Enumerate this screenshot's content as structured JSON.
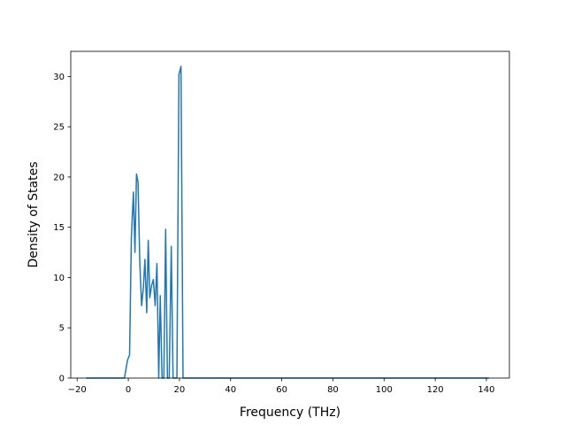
{
  "chart_data": {
    "type": "line",
    "title": "",
    "xlabel": "Frequency (THz)",
    "ylabel": "Density of States",
    "xlim": [
      -22.5,
      149
    ],
    "ylim": [
      0,
      32.5
    ],
    "xticks": [
      -20,
      0,
      20,
      40,
      60,
      80,
      100,
      120,
      140
    ],
    "yticks": [
      0,
      5,
      10,
      15,
      20,
      25,
      30
    ],
    "xtick_labels": [
      "−20",
      "0",
      "20",
      "40",
      "60",
      "80",
      "100",
      "120",
      "140"
    ],
    "ytick_labels": [
      "0",
      "5",
      "10",
      "15",
      "20",
      "25",
      "30"
    ],
    "grid": false,
    "legend": "none",
    "series": [
      {
        "color": "#1f77b4",
        "x": [
          -16.5,
          -1.5,
          -0.3,
          0.5,
          1.2,
          2.0,
          2.6,
          3.2,
          3.8,
          4.5,
          5.2,
          5.9,
          6.5,
          7.2,
          7.8,
          8.4,
          9.1,
          9.8,
          10.5,
          11.2,
          11.9,
          12.5,
          13.2,
          13.9,
          14.6,
          15.3,
          16.0,
          16.8,
          17.5,
          18.2,
          19.0,
          19.8,
          20.6,
          21.4,
          22.1,
          22.7,
          23.4,
          24.2,
          25.0,
          141.0
        ],
        "y": [
          0,
          0,
          1.8,
          2.3,
          14.0,
          18.5,
          12.5,
          20.3,
          19.5,
          11.5,
          7.2,
          9.0,
          11.8,
          6.5,
          13.7,
          8.0,
          9.2,
          9.8,
          7.2,
          11.4,
          0,
          8.2,
          0,
          0,
          14.8,
          0,
          0,
          13.1,
          0,
          0,
          0,
          30.2,
          31.0,
          0,
          0,
          0,
          0,
          0,
          0,
          0
        ]
      }
    ]
  }
}
